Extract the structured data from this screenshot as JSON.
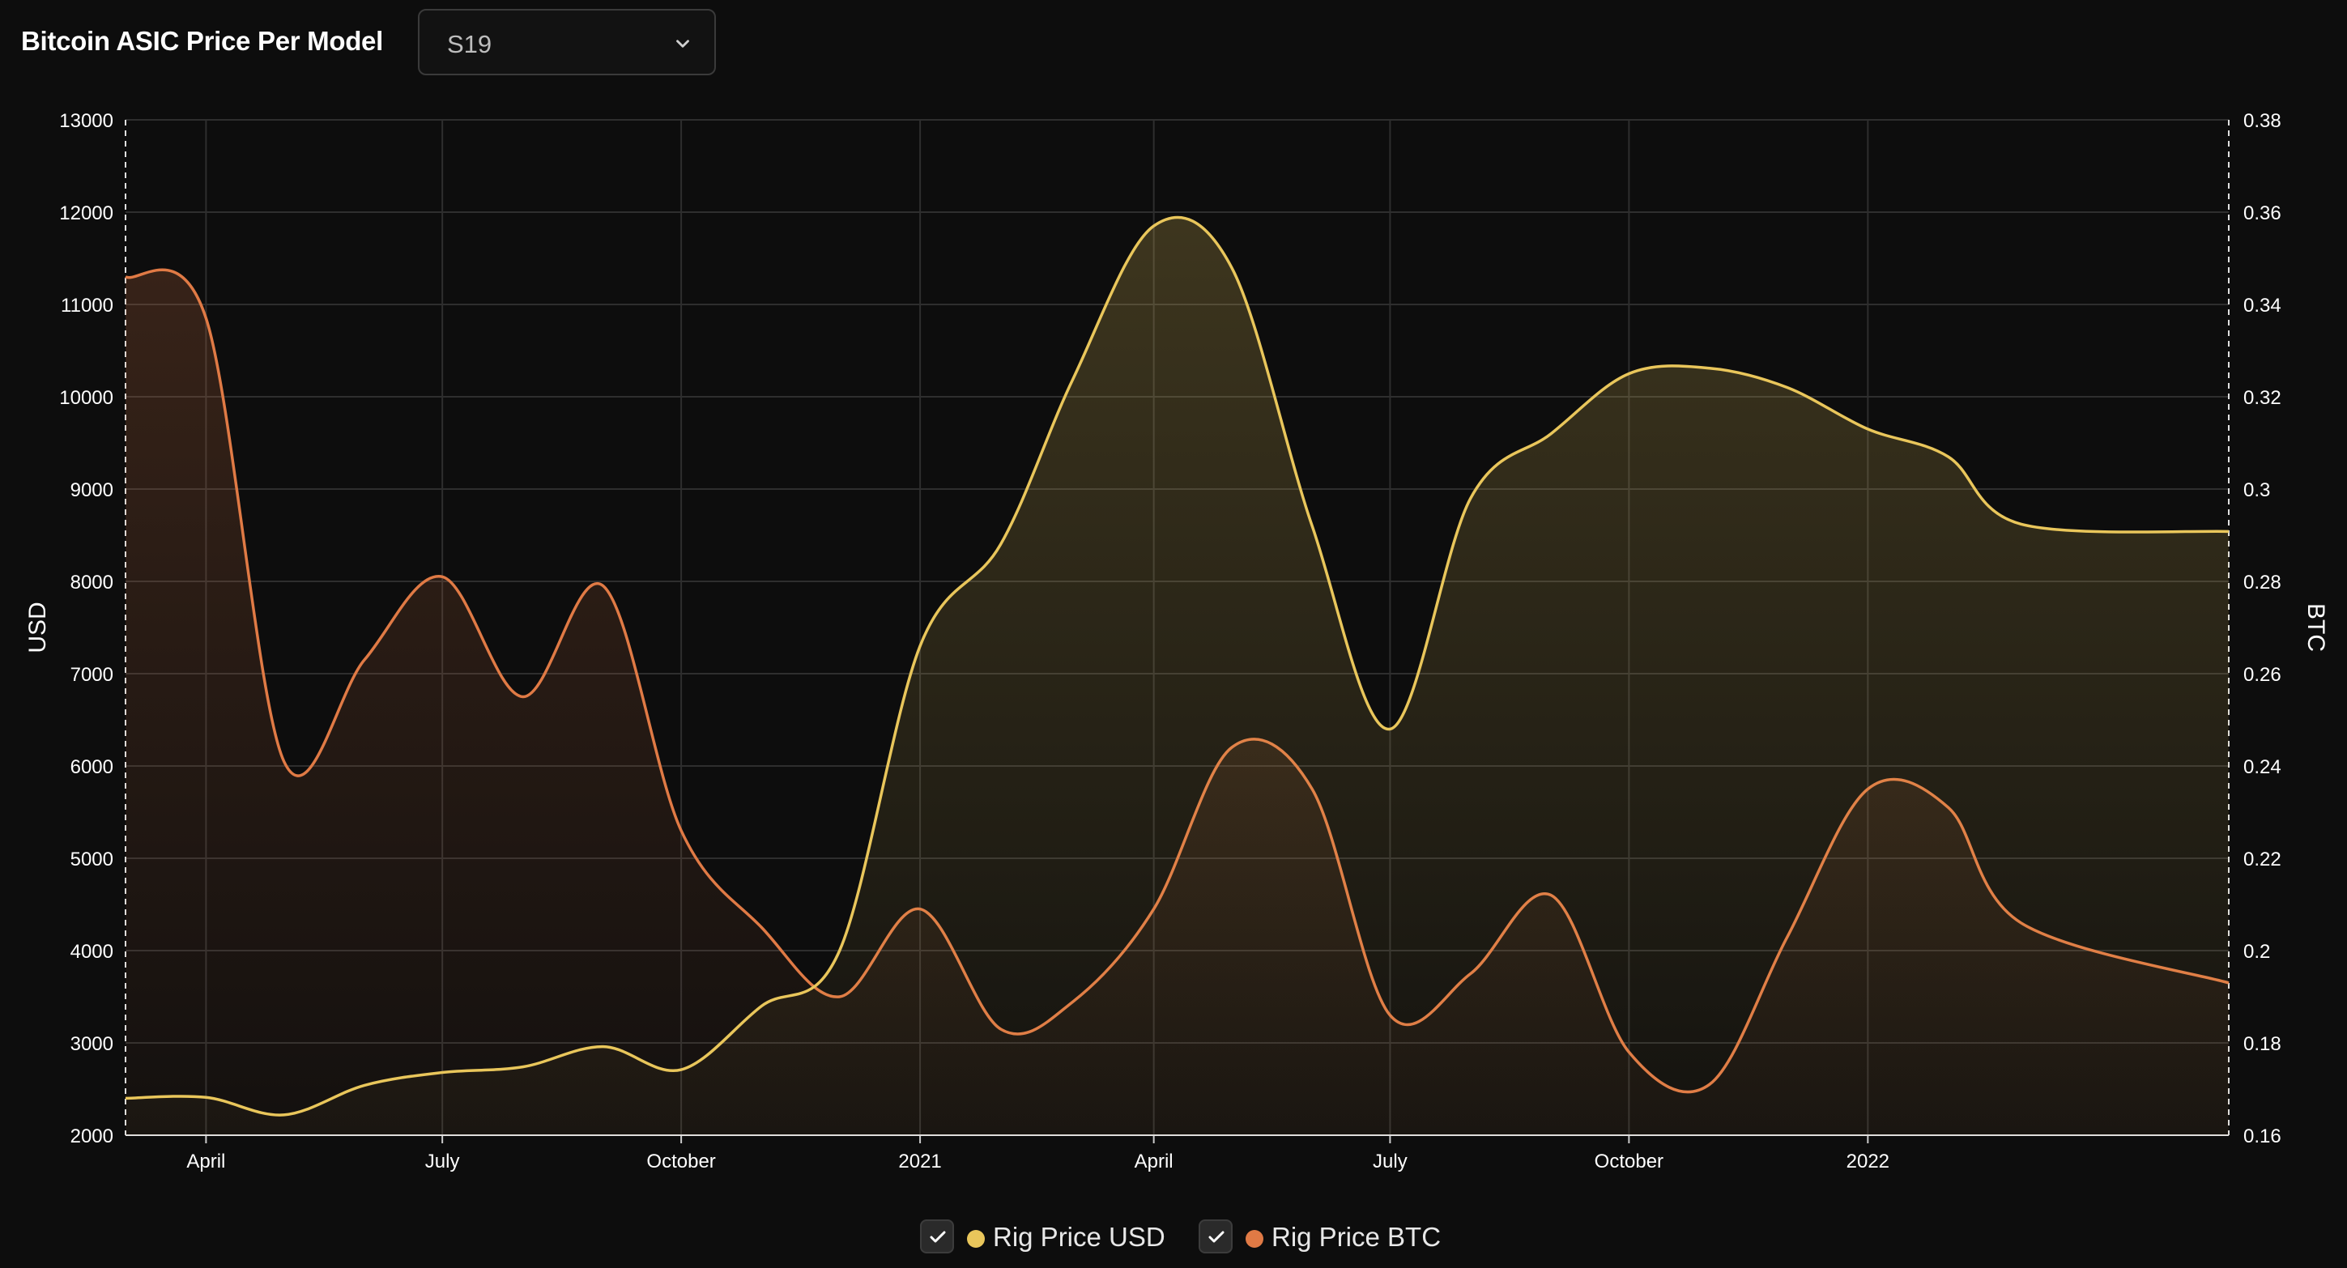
{
  "header": {
    "title": "Bitcoin ASIC Price Per Model",
    "model_select": {
      "value": "S19"
    }
  },
  "colors": {
    "usd": "#e9c65b",
    "btc": "#e07a45",
    "background": "#0d0d0d",
    "grid": "#333333"
  },
  "legend": {
    "items": [
      {
        "label": "Rig Price USD",
        "checked": true,
        "color": "#e9c65b"
      },
      {
        "label": "Rig Price BTC",
        "checked": true,
        "color": "#e07a45"
      }
    ]
  },
  "chart_data": {
    "type": "area",
    "title": "",
    "xlabel": "",
    "ylabel_left": "USD",
    "ylabel_right": "BTC",
    "ylim_left": [
      2000,
      13000
    ],
    "ylim_right": [
      0.16,
      0.38
    ],
    "yticks_left": [
      2000,
      3000,
      4000,
      5000,
      6000,
      7000,
      8000,
      9000,
      10000,
      11000,
      12000,
      13000
    ],
    "yticks_right": [
      "0.16",
      "0.18",
      "0.2",
      "0.22",
      "0.24",
      "0.26",
      "0.28",
      "0.3",
      "0.32",
      "0.34",
      "0.36",
      "0.38"
    ],
    "xlim": [
      "2020-03-01",
      "2022-05-20"
    ],
    "xticks": [
      {
        "date": "2020-04-01",
        "label": "April"
      },
      {
        "date": "2020-07-01",
        "label": "July"
      },
      {
        "date": "2020-10-01",
        "label": "October"
      },
      {
        "date": "2021-01-01",
        "label": "2021"
      },
      {
        "date": "2021-04-01",
        "label": "April"
      },
      {
        "date": "2021-07-01",
        "label": "July"
      },
      {
        "date": "2021-10-01",
        "label": "October"
      },
      {
        "date": "2022-01-01",
        "label": "2022"
      }
    ],
    "grid": true,
    "legend_position": "bottom-center",
    "series": [
      {
        "name": "Rig Price USD",
        "axis": "left",
        "points": [
          [
            "2020-03-01",
            2400
          ],
          [
            "2020-04-01",
            2410
          ],
          [
            "2020-05-01",
            2220
          ],
          [
            "2020-06-01",
            2540
          ],
          [
            "2020-07-01",
            2680
          ],
          [
            "2020-08-01",
            2740
          ],
          [
            "2020-09-01",
            2960
          ],
          [
            "2020-10-01",
            2710
          ],
          [
            "2020-11-01",
            3400
          ],
          [
            "2020-12-01",
            4000
          ],
          [
            "2021-01-01",
            7300
          ],
          [
            "2021-02-01",
            8400
          ],
          [
            "2021-03-01",
            10200
          ],
          [
            "2021-04-01",
            11850
          ],
          [
            "2021-05-01",
            11400
          ],
          [
            "2021-06-01",
            8600
          ],
          [
            "2021-07-01",
            6400
          ],
          [
            "2021-08-01",
            8900
          ],
          [
            "2021-09-01",
            9600
          ],
          [
            "2021-10-01",
            10250
          ],
          [
            "2021-11-01",
            10310
          ],
          [
            "2021-12-01",
            10100
          ],
          [
            "2022-01-01",
            9650
          ],
          [
            "2022-02-01",
            9350
          ],
          [
            "2022-03-01",
            8620
          ],
          [
            "2022-05-20",
            8540
          ]
        ]
      },
      {
        "name": "Rig Price BTC",
        "axis": "right",
        "points": [
          [
            "2020-03-01",
            0.346
          ],
          [
            "2020-04-01",
            0.337
          ],
          [
            "2020-05-01",
            0.241
          ],
          [
            "2020-06-01",
            0.263
          ],
          [
            "2020-07-01",
            0.281
          ],
          [
            "2020-08-01",
            0.255
          ],
          [
            "2020-09-01",
            0.279
          ],
          [
            "2020-10-01",
            0.226
          ],
          [
            "2020-11-01",
            0.205
          ],
          [
            "2020-12-01",
            0.19
          ],
          [
            "2021-01-01",
            0.209
          ],
          [
            "2021-02-01",
            0.183
          ],
          [
            "2021-03-01",
            0.189
          ],
          [
            "2021-04-01",
            0.209
          ],
          [
            "2021-05-01",
            0.244
          ],
          [
            "2021-06-01",
            0.235
          ],
          [
            "2021-07-01",
            0.186
          ],
          [
            "2021-08-01",
            0.195
          ],
          [
            "2021-09-01",
            0.212
          ],
          [
            "2021-10-01",
            0.178
          ],
          [
            "2021-11-01",
            0.171
          ],
          [
            "2021-12-01",
            0.203
          ],
          [
            "2022-01-01",
            0.235
          ],
          [
            "2022-02-01",
            0.231
          ],
          [
            "2022-03-01",
            0.206
          ],
          [
            "2022-05-20",
            0.193
          ]
        ]
      }
    ]
  }
}
